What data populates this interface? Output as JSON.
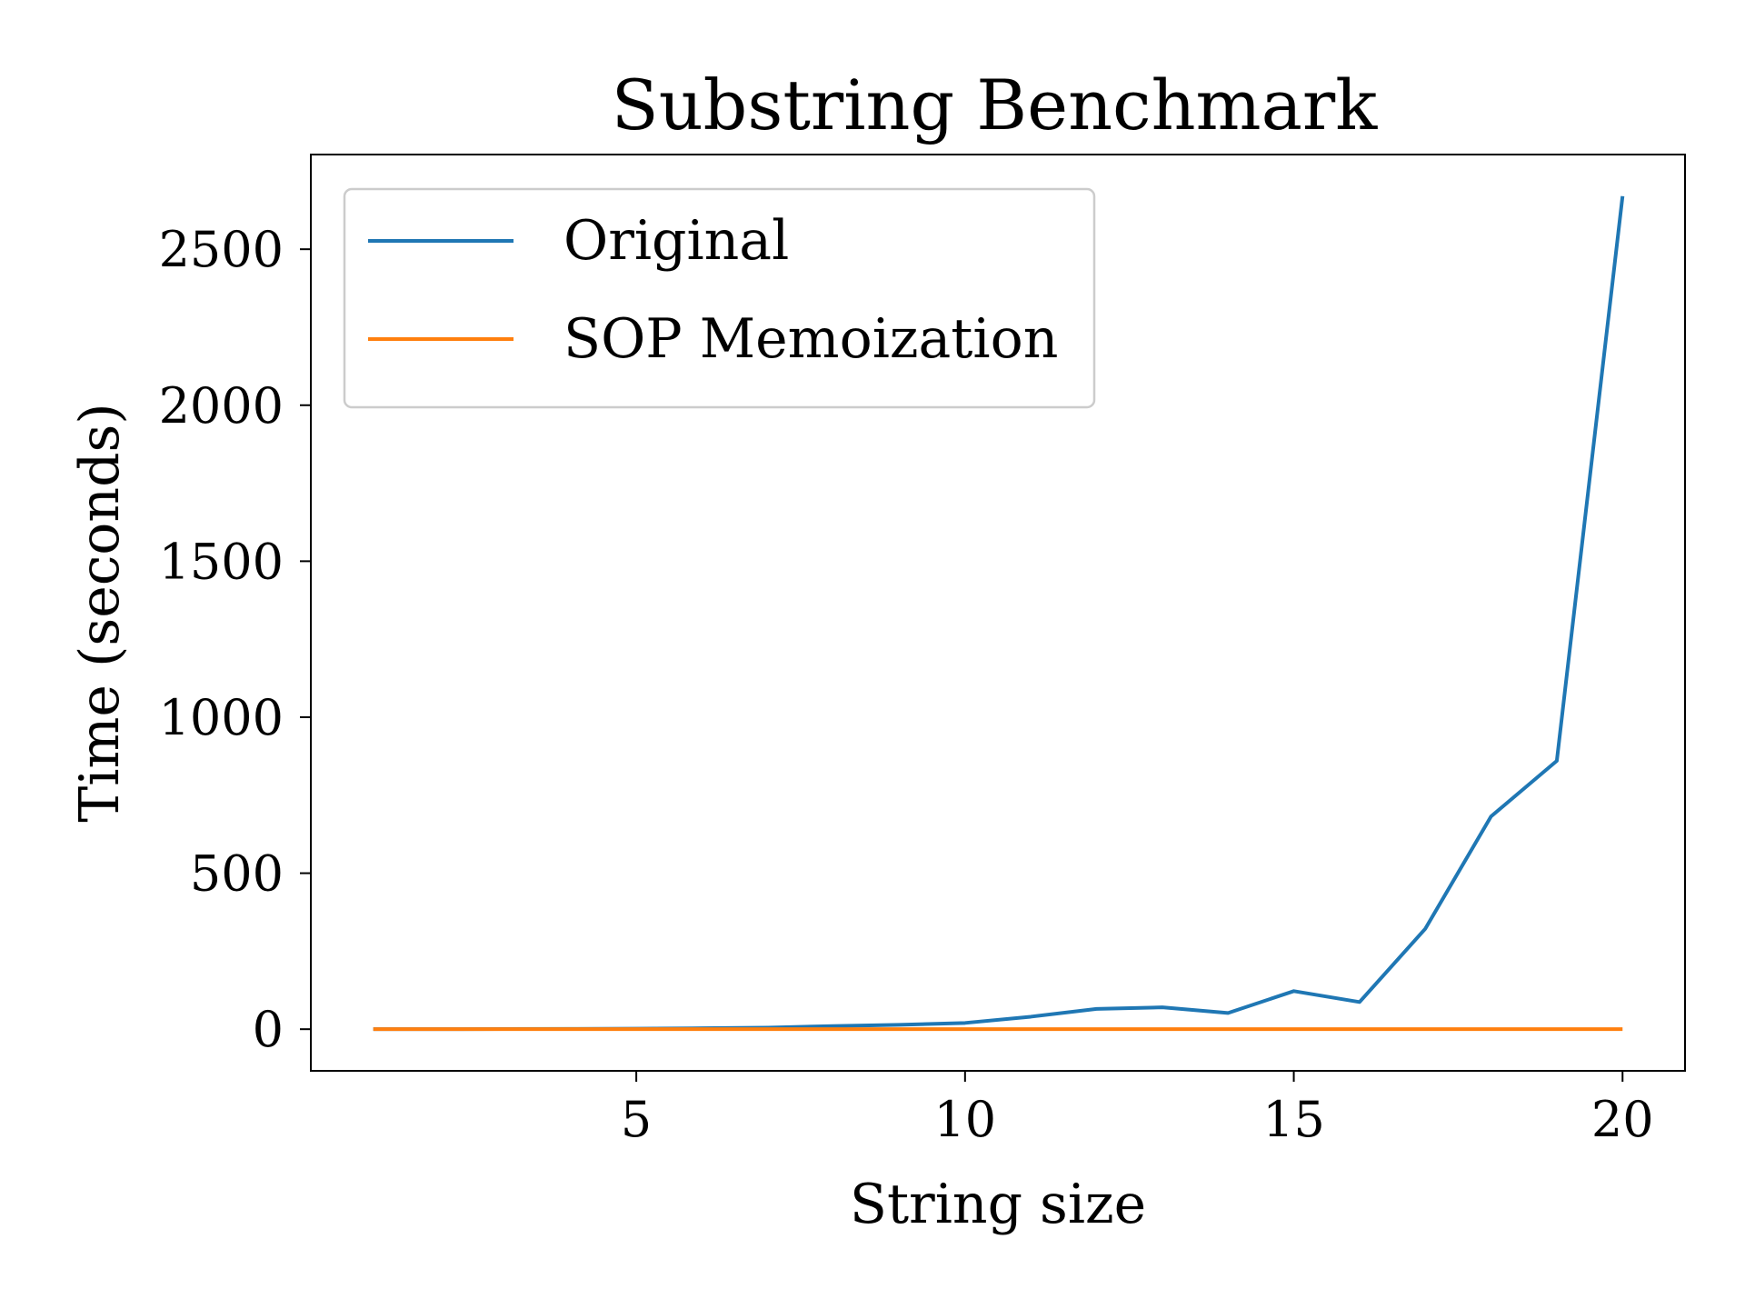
{
  "chart_data": {
    "type": "line",
    "title": "Substring Benchmark",
    "xlabel": "String size",
    "ylabel": "Time (seconds)",
    "x": [
      1,
      2,
      3,
      4,
      5,
      6,
      7,
      8,
      9,
      10,
      11,
      12,
      13,
      14,
      15,
      16,
      17,
      18,
      19,
      20
    ],
    "series": [
      {
        "name": "Original",
        "color": "#1f77b4",
        "values": [
          0.1,
          0.2,
          0.4,
          0.8,
          1.5,
          3,
          5,
          10,
          14,
          20,
          40,
          65,
          70,
          52,
          122,
          87,
          322,
          682,
          860,
          2670
        ]
      },
      {
        "name": "SOP Memoization",
        "color": "#ff7f0e",
        "values": [
          0,
          0,
          0,
          0,
          0,
          0,
          0,
          0,
          0,
          0,
          0,
          0,
          0,
          0,
          0,
          0,
          0,
          0,
          0,
          0
        ]
      }
    ],
    "xlim": [
      0.05,
      20.95
    ],
    "ylim": [
      -133.5,
      2803.5
    ],
    "xticks": [
      5,
      10,
      15,
      20
    ],
    "yticks": [
      0,
      500,
      1000,
      1500,
      2000,
      2500
    ],
    "grid": false,
    "legend_position": "top-left"
  }
}
